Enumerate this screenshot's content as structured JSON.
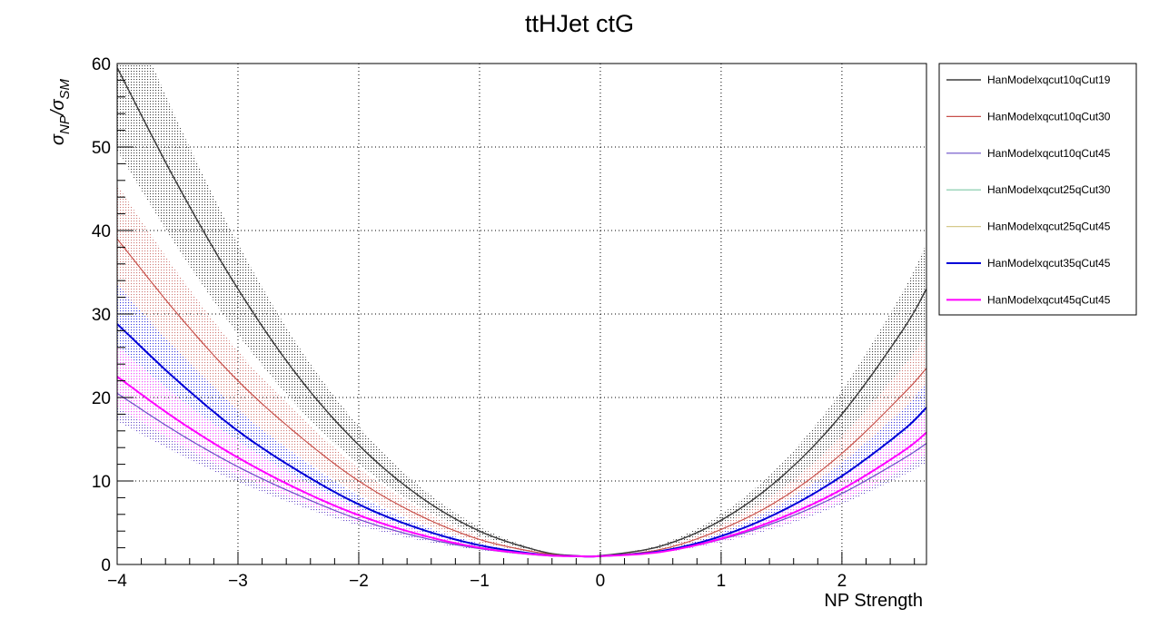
{
  "chart_data": {
    "type": "line",
    "title": "ttHJet ctG",
    "xlabel": "NP Strength",
    "ylabel_main": "σ",
    "ylabel_num_sub": "NP",
    "ylabel_slash": "/σ",
    "ylabel_den_sub": "SM",
    "xlim": [
      -4,
      2.7
    ],
    "ylim": [
      0,
      60
    ],
    "xticks": [
      -4,
      -3,
      -2,
      -1,
      0,
      1,
      2
    ],
    "xtick_labels": [
      "−4",
      "−3",
      "−2",
      "−1",
      "0",
      "1",
      "2"
    ],
    "yticks": [
      0,
      10,
      20,
      30,
      40,
      50,
      60
    ],
    "ytick_labels": [
      "0",
      "10",
      "20",
      "30",
      "40",
      "50",
      "60"
    ],
    "grid": true,
    "legend_position": "outside-right",
    "series": [
      {
        "name": "HanModelxqcut10qCut19",
        "color": "#3d3d3d",
        "width": 1.5,
        "band": true,
        "x": [
          -4,
          -3.5,
          -3,
          -2.5,
          -2,
          -1.5,
          -1,
          -0.5,
          -0.2,
          0,
          0.5,
          1,
          1.5,
          2,
          2.5,
          2.7
        ],
        "y": [
          59.5,
          45.5,
          33,
          22.5,
          14.3,
          8.2,
          4,
          1.6,
          1.05,
          1.05,
          2.2,
          5.3,
          10.5,
          18,
          28,
          33
        ]
      },
      {
        "name": "HanModelxqcut10qCut30",
        "color": "#c8504a",
        "width": 1.2,
        "band": true,
        "x": [
          -4,
          -3.5,
          -3,
          -2.5,
          -2,
          -1.5,
          -1,
          -0.5,
          -0.2,
          0,
          0.5,
          1,
          1.5,
          2,
          2.5,
          2.7
        ],
        "y": [
          39,
          30,
          22,
          15.5,
          10,
          5.9,
          3,
          1.4,
          1.02,
          1.02,
          1.8,
          4.2,
          7.9,
          13.3,
          20.3,
          23.5
        ]
      },
      {
        "name": "HanModelxqcut10qCut45",
        "color": "#6a4fc7",
        "width": 1.2,
        "band": true,
        "x": [
          -4,
          -3.5,
          -3,
          -2.5,
          -2,
          -1.5,
          -1,
          -0.5,
          -0.2,
          0,
          0.5,
          1,
          1.5,
          2,
          2.5,
          2.7
        ],
        "y": [
          20.5,
          15.8,
          11.7,
          8.3,
          5.4,
          3.3,
          1.9,
          1.1,
          1,
          1,
          1.5,
          3,
          5.3,
          8.5,
          12.6,
          14.5
        ]
      },
      {
        "name": "HanModelxqcut25qCut30",
        "color": "#7fc9a6",
        "width": 1.2,
        "band": false,
        "x": [],
        "y": []
      },
      {
        "name": "HanModelxqcut25qCut45",
        "color": "#d6c98c",
        "width": 1.2,
        "band": false,
        "x": [],
        "y": []
      },
      {
        "name": "HanModelxqcut35qCut45",
        "color": "#0000d8",
        "width": 2,
        "band": true,
        "x": [
          -4,
          -3.5,
          -3,
          -2.5,
          -2,
          -1.5,
          -1,
          -0.5,
          -0.2,
          0,
          0.5,
          1,
          1.5,
          2,
          2.5,
          2.7
        ],
        "y": [
          28.8,
          22,
          16,
          11.2,
          7.2,
          4.3,
          2.3,
          1.2,
          1,
          1,
          1.6,
          3.4,
          6.4,
          10.6,
          16,
          18.8
        ]
      },
      {
        "name": "HanModelxqcut45qCut45",
        "color": "#ff00ff",
        "width": 2,
        "band": true,
        "x": [
          -4,
          -3.5,
          -3,
          -2.5,
          -2,
          -1.5,
          -1,
          -0.5,
          -0.2,
          0,
          0.5,
          1,
          1.5,
          2,
          2.5,
          2.7
        ],
        "y": [
          22.5,
          17.3,
          12.8,
          9,
          5.9,
          3.6,
          2,
          1.15,
          1,
          1,
          1.5,
          3.1,
          5.6,
          9,
          13.5,
          15.8
        ]
      }
    ]
  }
}
